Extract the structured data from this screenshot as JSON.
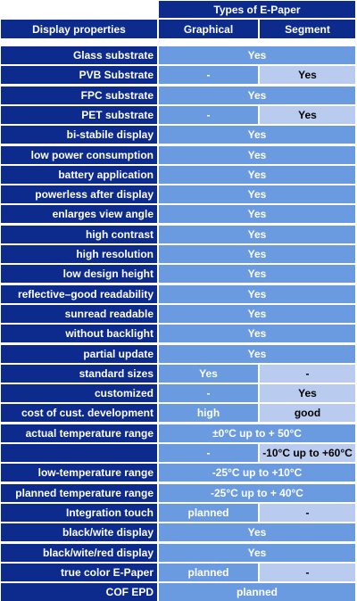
{
  "header": {
    "types_label": "Types of E-Paper",
    "properties_label": "Display properties",
    "graphical_label": "Graphical",
    "segment_label": "Segment"
  },
  "colors": {
    "dark_blue": "#0d2b8c",
    "medium_blue": "#6a9be0",
    "light_blue": "#b9ccef"
  },
  "rows": [
    {
      "label": "Glass substrate",
      "both": "Yes"
    },
    {
      "label": "PVB Substrate",
      "graphical": "-",
      "segment": "Yes"
    },
    {
      "label": "FPC substrate",
      "both": "Yes"
    },
    {
      "label": "PET substrate",
      "graphical": "-",
      "segment": "Yes"
    },
    {
      "label": "bi-stabile display",
      "both": "Yes"
    },
    {
      "label": "low power consumption",
      "both": "Yes"
    },
    {
      "label": "battery application",
      "both": "Yes"
    },
    {
      "label": "powerless after display",
      "both": "Yes"
    },
    {
      "label": "enlarges view angle",
      "both": "Yes"
    },
    {
      "label": "high contrast",
      "both": "Yes"
    },
    {
      "label": "high resolution",
      "both": "Yes"
    },
    {
      "label": "low design height",
      "both": "Yes"
    },
    {
      "label": "reflective–good readability",
      "both": "Yes"
    },
    {
      "label": "sunread readable",
      "both": "Yes"
    },
    {
      "label": "without backlight",
      "both": "Yes"
    },
    {
      "label": "partial update",
      "both": "Yes"
    },
    {
      "label": "standard sizes",
      "graphical": "Yes",
      "segment": "-"
    },
    {
      "label": "customized",
      "graphical": "-",
      "segment": "Yes"
    },
    {
      "label": "cost of cust. development",
      "graphical": "high",
      "segment": "good"
    },
    {
      "label": "actual temperature range",
      "both": "±0°C up to + 50°C"
    },
    {
      "label": "",
      "graphical": "-",
      "segment": "-10°C up to +60°C"
    },
    {
      "label": "low-temperature range",
      "both": "-25°C up to +10°C"
    },
    {
      "label": "planned temperature range",
      "both": "-25°C up to + 40°C"
    },
    {
      "label": "Integration touch",
      "graphical": "planned",
      "segment": "-"
    },
    {
      "label": "black/wite display",
      "both": "Yes"
    },
    {
      "label": "black/wite/red display",
      "both": "Yes"
    },
    {
      "label": "true color E-Paper",
      "graphical": "planned",
      "segment": "-"
    },
    {
      "label": "COF EPD",
      "both": "planned"
    }
  ]
}
